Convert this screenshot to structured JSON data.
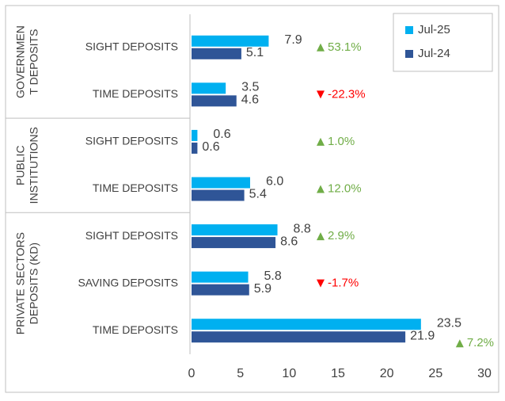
{
  "chart_data": {
    "type": "grouped-hbar",
    "categories": [
      "SIGHT DEPOSITS",
      "TIME DEPOSITS",
      "SIGHT DEPOSITS",
      "TIME DEPOSITS",
      "SIGHT DEPOSITS",
      "SAVING DEPOSITS",
      "TIME DEPOSITS"
    ],
    "groups": [
      {
        "lines": [
          "GOVERNMEN",
          "T DEPOSITS"
        ],
        "size": 2
      },
      {
        "lines": [
          "PUBLIC",
          "INSTITUTIONS"
        ],
        "size": 2
      },
      {
        "lines": [
          "PRIVATE SECTORS",
          "DEPOSITS (KD)"
        ],
        "size": 3
      }
    ],
    "series": [
      {
        "name": "Jul-25",
        "color": "#00b0f0",
        "values": [
          7.9,
          3.5,
          0.6,
          6.0,
          8.8,
          5.8,
          23.5
        ],
        "value_labels": [
          "7.9",
          "3.5",
          "0.6",
          "6.0",
          "8.8",
          "5.8",
          "23.5"
        ]
      },
      {
        "name": "Jul-24",
        "color": "#2f5597",
        "values": [
          5.1,
          4.6,
          0.6,
          5.4,
          8.6,
          5.9,
          21.9
        ],
        "value_labels": [
          "5.1",
          "4.6",
          "0.6",
          "5.4",
          "8.6",
          "5.9",
          "21.9"
        ]
      }
    ],
    "changes": [
      53.1,
      -22.3,
      1.0,
      12.0,
      2.9,
      -1.7,
      7.2
    ],
    "change_labels": [
      "53.1%",
      "-22.3%",
      "1.0%",
      "12.0%",
      "2.9%",
      "-1.7%",
      "7.2%"
    ],
    "up_color": "#70ad47",
    "down_color": "#ff0000",
    "xlim": [
      0,
      30
    ],
    "xticks": [
      0,
      5,
      10,
      15,
      20,
      25,
      30
    ],
    "legend": "top-right"
  }
}
